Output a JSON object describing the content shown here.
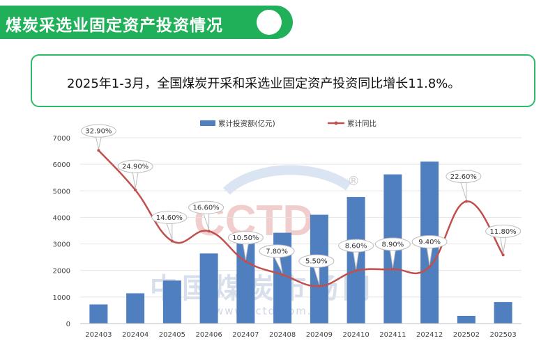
{
  "header": {
    "title": "煤炭采选业固定资产投资情况"
  },
  "summary": {
    "text": "2025年1-3月，全国煤炭开采和采选业固定资产投资同比增长11.8%。"
  },
  "watermark": {
    "logo": "CCTD",
    "registered": "®",
    "cn_name": "中国煤炭市场网",
    "url": "www.cctd.com.cn"
  },
  "colors": {
    "bar": "#4f7fbf",
    "line": "#c0504d",
    "header_green": "#21b05a"
  },
  "chart_data": {
    "type": "bar+line",
    "categories": [
      "202403",
      "202404",
      "202405",
      "202406",
      "202407",
      "202408",
      "202409",
      "202410",
      "202411",
      "202412",
      "202502",
      "202503"
    ],
    "series": [
      {
        "name": "累计投资额(亿元)",
        "type": "bar",
        "axis": "left",
        "values": [
          720,
          1140,
          1620,
          2640,
          3020,
          3420,
          4100,
          4770,
          5620,
          6100,
          290,
          810
        ]
      },
      {
        "name": "累计同比",
        "type": "line",
        "axis": "right",
        "values": [
          32.9,
          24.9,
          14.6,
          16.6,
          10.5,
          7.8,
          5.5,
          8.6,
          8.9,
          9.4,
          22.6,
          11.8
        ],
        "labels": [
          "32.90%",
          "24.90%",
          "14.60%",
          "16.60%",
          "10.50%",
          "7.80%",
          "5.50%",
          "8.60%",
          "8.90%",
          "9.40%",
          "22.60%",
          "11.80%"
        ]
      }
    ],
    "ylim": [
      0,
      7000
    ],
    "yticks": [
      "0",
      "1000",
      "2000",
      "3000",
      "4000",
      "5000",
      "6000",
      "7000"
    ],
    "legend": "top-center",
    "grid": true
  }
}
